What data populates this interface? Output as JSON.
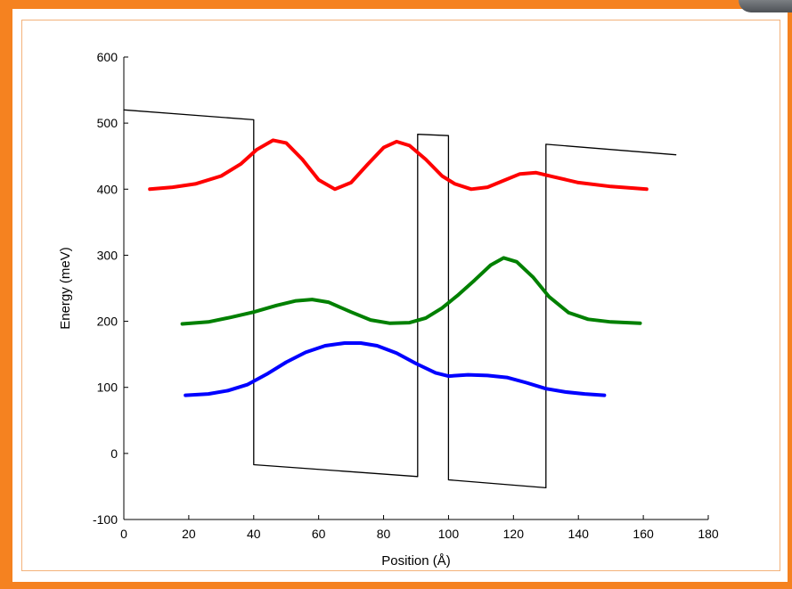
{
  "chart_data": {
    "type": "line",
    "xlabel": "Position (Å)",
    "ylabel": "Energy (meV)",
    "xlim": [
      0,
      180
    ],
    "ylim": [
      -100,
      600
    ],
    "x_ticks": [
      "0",
      "20",
      "40",
      "60",
      "80",
      "100",
      "120",
      "140",
      "160",
      "180"
    ],
    "y_ticks": [
      "-100",
      "0",
      "100",
      "200",
      "300",
      "400",
      "500",
      "600"
    ],
    "grid": false,
    "series": [
      {
        "color": "#000000",
        "style": "thin",
        "points": [
          [
            0,
            520
          ],
          [
            40,
            505
          ],
          [
            40,
            -17
          ],
          [
            90.5,
            -35
          ],
          [
            90.5,
            483
          ],
          [
            100,
            481
          ],
          [
            100,
            -40
          ],
          [
            130,
            -52
          ],
          [
            130,
            468
          ],
          [
            170,
            452
          ]
        ]
      },
      {
        "color": "#ff0000",
        "style": "thick",
        "points": [
          [
            8,
            400
          ],
          [
            15,
            403
          ],
          [
            22,
            408
          ],
          [
            30,
            420
          ],
          [
            36,
            438
          ],
          [
            41,
            460
          ],
          [
            46,
            474
          ],
          [
            50,
            470
          ],
          [
            55,
            445
          ],
          [
            60,
            414
          ],
          [
            65,
            400
          ],
          [
            70,
            410
          ],
          [
            75,
            437
          ],
          [
            80,
            463
          ],
          [
            84,
            472
          ],
          [
            88,
            466
          ],
          [
            93,
            445
          ],
          [
            98,
            420
          ],
          [
            102,
            408
          ],
          [
            107,
            400
          ],
          [
            112,
            403
          ],
          [
            117,
            413
          ],
          [
            122,
            423
          ],
          [
            127,
            425
          ],
          [
            132,
            419
          ],
          [
            140,
            410
          ],
          [
            150,
            404
          ],
          [
            161,
            400
          ]
        ]
      },
      {
        "color": "#008000",
        "style": "thick",
        "points": [
          [
            18,
            196
          ],
          [
            26,
            199
          ],
          [
            33,
            206
          ],
          [
            40,
            214
          ],
          [
            47,
            224
          ],
          [
            53,
            231
          ],
          [
            58,
            233
          ],
          [
            63,
            229
          ],
          [
            70,
            214
          ],
          [
            76,
            202
          ],
          [
            82,
            197
          ],
          [
            88,
            198
          ],
          [
            93,
            205
          ],
          [
            98,
            220
          ],
          [
            103,
            240
          ],
          [
            108,
            262
          ],
          [
            113,
            285
          ],
          [
            117,
            296
          ],
          [
            121,
            290
          ],
          [
            126,
            267
          ],
          [
            131,
            237
          ],
          [
            137,
            213
          ],
          [
            143,
            203
          ],
          [
            150,
            199
          ],
          [
            159,
            197
          ]
        ]
      },
      {
        "color": "#0000ff",
        "style": "thick",
        "points": [
          [
            19,
            88
          ],
          [
            26,
            90
          ],
          [
            32,
            95
          ],
          [
            38,
            104
          ],
          [
            44,
            120
          ],
          [
            50,
            138
          ],
          [
            56,
            153
          ],
          [
            62,
            163
          ],
          [
            68,
            167
          ],
          [
            73,
            167
          ],
          [
            78,
            163
          ],
          [
            84,
            152
          ],
          [
            90,
            136
          ],
          [
            96,
            122
          ],
          [
            100,
            117
          ],
          [
            106,
            119
          ],
          [
            112,
            118
          ],
          [
            118,
            115
          ],
          [
            124,
            107
          ],
          [
            130,
            98
          ],
          [
            136,
            93
          ],
          [
            142,
            90
          ],
          [
            148,
            88
          ]
        ]
      }
    ]
  }
}
